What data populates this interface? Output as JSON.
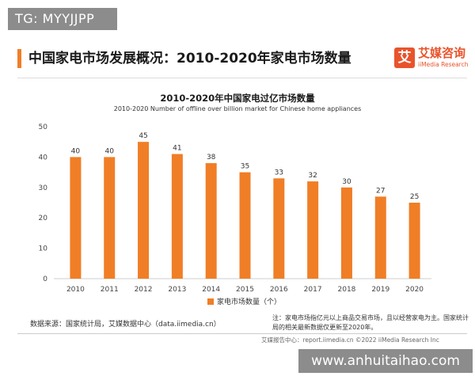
{
  "overlay": {
    "tg_tag": "TG: MYYJJPP",
    "site": "www.anhuitaihao.com"
  },
  "header": {
    "title": "中国家电市场发展概况：2010-2020年家电市场数量"
  },
  "brand": {
    "mark": "艾",
    "name_cn": "艾媒咨询",
    "name_en": "iiMedia Research"
  },
  "chart_data": {
    "type": "bar",
    "title": "2010-2020年中国家电过亿市场数量",
    "subtitle": "2010-2020 Number of offline over billion market for Chinese home appliances",
    "categories": [
      "2010",
      "2011",
      "2012",
      "2013",
      "2014",
      "2015",
      "2016",
      "2017",
      "2018",
      "2019",
      "2020"
    ],
    "series": [
      {
        "name": "家电市场数量（个）",
        "values": [
          40,
          40,
          45,
          41,
          38,
          35,
          33,
          32,
          30,
          27,
          25
        ],
        "color": "#f07e26"
      }
    ],
    "yticks": [
      0,
      10,
      20,
      30,
      40,
      50
    ],
    "ylim": [
      0,
      50
    ],
    "grid": false,
    "data_labels": true,
    "legend_position": "bottom"
  },
  "source": "数据来源：国家统计局，艾媒数据中心（data.iimedia.cn）",
  "note": "注：家电市场指亿元以上商品交易市场，且以经营家电为主。国家统计局的相关最新数据仅更新至2020年。",
  "footer": "艾媒报告中心：report.iimedia.cn ©2022 iiMedia Research Inc"
}
